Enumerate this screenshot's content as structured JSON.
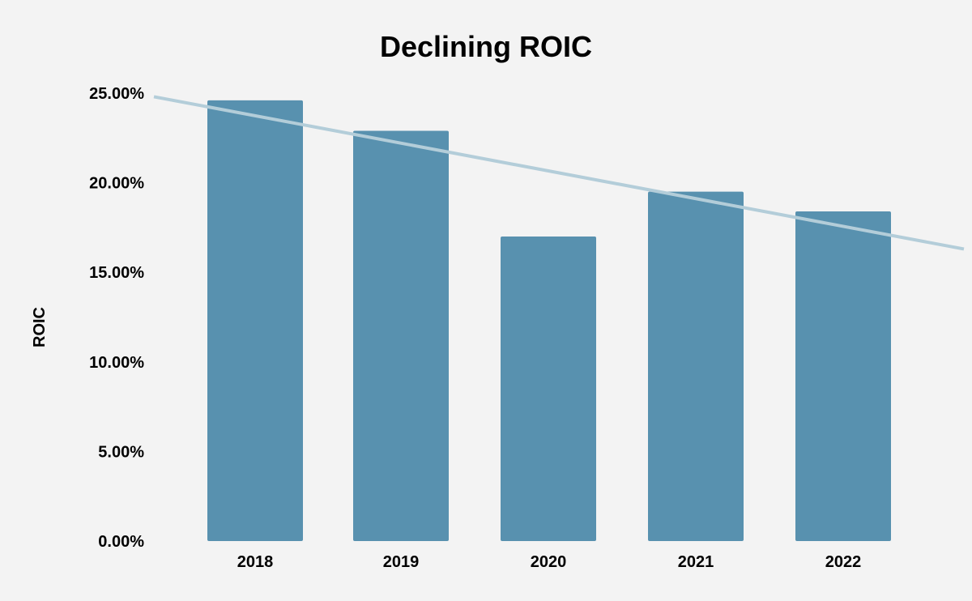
{
  "chart_data": {
    "type": "bar",
    "title": "Declining ROIC",
    "xlabel": "",
    "ylabel": "ROIC",
    "categories": [
      "2018",
      "2019",
      "2020",
      "2021",
      "2022"
    ],
    "values": [
      24.6,
      22.9,
      17.0,
      19.5,
      18.4
    ],
    "ylim": [
      0,
      25
    ],
    "yticks": [
      "0.00%",
      "5.00%",
      "10.00%",
      "15.00%",
      "20.00%",
      "25.00%"
    ],
    "ytick_values": [
      0,
      5,
      10,
      15,
      20,
      25
    ],
    "grid": false,
    "legend": "none",
    "trendline": {
      "type": "linear",
      "start_value": 24.8,
      "end_value": 16.3
    },
    "colors": {
      "bar": "#5891af",
      "trendline": "#b3cdd9",
      "background": "#f3f3f3"
    }
  }
}
